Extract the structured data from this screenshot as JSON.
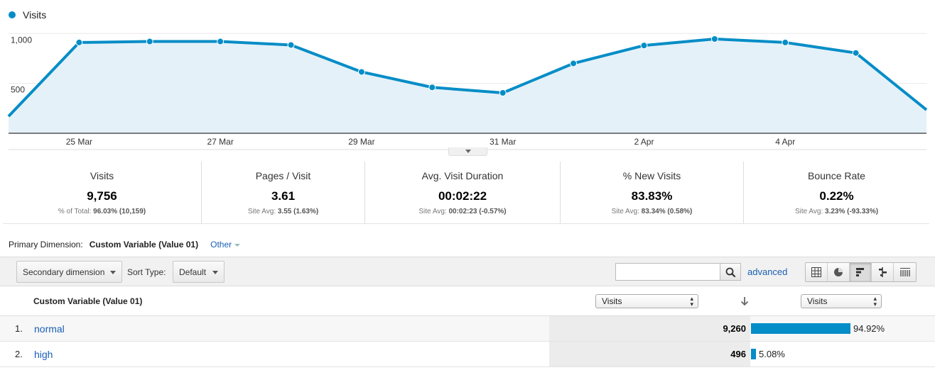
{
  "chart_data": {
    "type": "line",
    "legend": "Visits",
    "color": "#058dc7",
    "fill": "#e5f1f8",
    "y_ticks": [
      "1,000",
      "500"
    ],
    "y_tick_values": [
      1000,
      500
    ],
    "ylim": [
      0,
      1080
    ],
    "grid": true,
    "x_tick_labels": [
      "25 Mar",
      "27 Mar",
      "29 Mar",
      "31 Mar",
      "2 Apr",
      "4 Apr"
    ],
    "x_tick_indices": [
      1,
      3,
      5,
      7,
      9,
      11
    ],
    "x": [
      "24 Mar",
      "25 Mar",
      "26 Mar",
      "27 Mar",
      "28 Mar",
      "29 Mar",
      "30 Mar",
      "31 Mar",
      "1 Apr",
      "2 Apr",
      "3 Apr",
      "4 Apr",
      "5 Apr",
      "6 Apr"
    ],
    "series": [
      {
        "name": "Visits",
        "values": [
          170,
          910,
          920,
          920,
          885,
          615,
          460,
          405,
          700,
          880,
          945,
          910,
          805,
          235
        ]
      }
    ]
  },
  "scorecards": [
    {
      "label": "Visits",
      "value": "9,756",
      "sub_prefix": "% of Total:",
      "sub_value": "96.03% (10,159)"
    },
    {
      "label": "Pages / Visit",
      "value": "3.61",
      "sub_prefix": "Site Avg:",
      "sub_value": "3.55 (1.63%)"
    },
    {
      "label": "Avg. Visit Duration",
      "value": "00:02:22",
      "sub_prefix": "Site Avg:",
      "sub_value": "00:02:23 (-0.57%)"
    },
    {
      "label": "% New Visits",
      "value": "83.83%",
      "sub_prefix": "Site Avg:",
      "sub_value": "83.34% (0.58%)"
    },
    {
      "label": "Bounce Rate",
      "value": "0.22%",
      "sub_prefix": "Site Avg:",
      "sub_value": "3.23% (-93.33%)"
    }
  ],
  "primary_dimension": {
    "label": "Primary Dimension:",
    "value": "Custom Variable (Value 01)",
    "other": "Other"
  },
  "toolbar": {
    "secondary_dimension": "Secondary dimension",
    "sort_type_label": "Sort Type:",
    "sort_type_value": "Default",
    "search_placeholder": "",
    "advanced": "advanced"
  },
  "table": {
    "dimension_header": "Custom Variable (Value 01)",
    "metric_select_1": "Visits",
    "metric_select_2": "Visits",
    "rows": [
      {
        "index": "1.",
        "name": "normal",
        "value": "9,260",
        "percent": "94.92%",
        "share": 0.9492
      },
      {
        "index": "2.",
        "name": "high",
        "value": "496",
        "percent": "5.08%",
        "share": 0.0508
      }
    ]
  }
}
